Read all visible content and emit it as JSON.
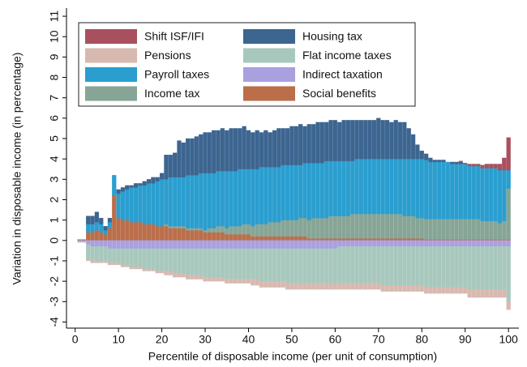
{
  "chart_data": {
    "type": "stacked-bar",
    "x_label": "Percentile of disposable income (per unit of consumption)",
    "y_label": "Variation in disposable income (in percentage)",
    "x": [
      1,
      2,
      3,
      4,
      5,
      6,
      7,
      8,
      9,
      10,
      11,
      12,
      13,
      14,
      15,
      16,
      17,
      18,
      19,
      20,
      21,
      22,
      23,
      24,
      25,
      26,
      27,
      28,
      29,
      30,
      31,
      32,
      33,
      34,
      35,
      36,
      37,
      38,
      39,
      40,
      41,
      42,
      43,
      44,
      45,
      46,
      47,
      48,
      49,
      50,
      51,
      52,
      53,
      54,
      55,
      56,
      57,
      58,
      59,
      60,
      61,
      62,
      63,
      64,
      65,
      66,
      67,
      68,
      69,
      70,
      71,
      72,
      73,
      74,
      75,
      76,
      77,
      78,
      79,
      80,
      81,
      82,
      83,
      84,
      85,
      86,
      87,
      88,
      89,
      90,
      91,
      92,
      93,
      94,
      95,
      96,
      97,
      98,
      99,
      100
    ],
    "xlim": [
      -2,
      102.4
    ],
    "xticks": [
      0,
      10,
      20,
      30,
      40,
      50,
      60,
      70,
      80,
      90,
      100
    ],
    "ylim": [
      -4.3,
      11.4
    ],
    "yticks": [
      -4,
      -3,
      -2,
      -1,
      0,
      1,
      2,
      3,
      4,
      5,
      6,
      7,
      8,
      9,
      10,
      11
    ],
    "series": [
      {
        "name": "Social benefits",
        "color": "#bb6e4a",
        "values": [
          0.05,
          0.05,
          0.4,
          0.4,
          0.5,
          0.4,
          0.3,
          0.6,
          2.2,
          1.1,
          1.0,
          1.0,
          0.9,
          0.9,
          0.9,
          0.8,
          0.8,
          0.8,
          0.7,
          0.7,
          0.7,
          0.6,
          0.6,
          0.6,
          0.6,
          0.5,
          0.5,
          0.5,
          0.5,
          0.4,
          0.4,
          0.4,
          0.4,
          0.4,
          0.3,
          0.3,
          0.3,
          0.3,
          0.3,
          0.3,
          0.2,
          0.2,
          0.2,
          0.2,
          0.2,
          0.2,
          0.2,
          0.2,
          0.2,
          0.2,
          0.2,
          0.2,
          0.2,
          0.1,
          0.1,
          0.1,
          0.1,
          0.1,
          0.1,
          0.1,
          0.1,
          0.1,
          0.1,
          0.1,
          0.1,
          0.1,
          0.1,
          0.1,
          0.1,
          0.1,
          0.1,
          0.1,
          0.1,
          0.1,
          0.1,
          0.1,
          0.1,
          0.1,
          0.1,
          0.1,
          0.05,
          0.05,
          0.05,
          0.05,
          0.05,
          0.05,
          0.05,
          0.05,
          0.05,
          0.05,
          0.05,
          0.05,
          0.05,
          0.05,
          0.05,
          0.05,
          0.05,
          0.05,
          0.05,
          0.05
        ]
      },
      {
        "name": "Income tax",
        "color": "#87a596",
        "values": [
          0,
          0,
          0,
          0,
          0,
          0,
          0,
          0,
          0,
          0,
          0,
          0,
          0,
          0,
          0,
          0,
          0,
          0,
          0,
          0,
          0.1,
          0.1,
          0.1,
          0.1,
          0.1,
          0.1,
          0.1,
          0.1,
          0.1,
          0.1,
          0.2,
          0.2,
          0.3,
          0.3,
          0.3,
          0.4,
          0.4,
          0.4,
          0.5,
          0.5,
          0.5,
          0.6,
          0.6,
          0.6,
          0.7,
          0.7,
          0.7,
          0.8,
          0.8,
          0.8,
          0.8,
          0.9,
          0.9,
          0.9,
          1.0,
          1.0,
          1.0,
          1.0,
          1.1,
          1.1,
          1.1,
          1.1,
          1.1,
          1.2,
          1.2,
          1.2,
          1.2,
          1.2,
          1.2,
          1.2,
          1.2,
          1.2,
          1.2,
          1.2,
          1.2,
          1.1,
          1.1,
          1.1,
          1.0,
          1.0,
          1.0,
          1.0,
          1.0,
          1.0,
          1.0,
          1.0,
          1.0,
          1.0,
          1.0,
          1.0,
          1.0,
          1.0,
          1.0,
          0.9,
          0.9,
          0.9,
          0.9,
          0.8,
          0.9,
          2.5
        ]
      },
      {
        "name": "Payroll taxes",
        "color": "#2a9ecf",
        "values": [
          0,
          0,
          0.4,
          0.4,
          0.4,
          0.4,
          0.2,
          0.3,
          1.0,
          1.2,
          1.4,
          1.5,
          1.7,
          1.7,
          1.8,
          1.9,
          2.0,
          2.0,
          2.2,
          2.3,
          2.2,
          2.4,
          2.4,
          2.4,
          2.4,
          2.6,
          2.6,
          2.6,
          2.7,
          2.8,
          2.7,
          2.7,
          2.7,
          2.7,
          2.8,
          2.7,
          2.7,
          2.8,
          2.7,
          2.7,
          2.8,
          2.7,
          2.8,
          2.8,
          2.7,
          2.7,
          2.7,
          2.7,
          2.7,
          2.7,
          2.7,
          2.6,
          2.7,
          2.8,
          2.7,
          2.7,
          2.7,
          2.8,
          2.7,
          2.7,
          2.7,
          2.7,
          2.7,
          2.6,
          2.7,
          2.7,
          2.7,
          2.7,
          2.7,
          2.7,
          2.7,
          2.7,
          2.7,
          2.7,
          2.7,
          2.8,
          2.8,
          2.8,
          2.9,
          2.9,
          2.9,
          2.8,
          2.8,
          2.8,
          2.8,
          2.8,
          2.7,
          2.7,
          2.7,
          2.7,
          2.6,
          2.6,
          2.6,
          2.6,
          2.6,
          2.6,
          2.6,
          2.6,
          2.5,
          0.9
        ]
      },
      {
        "name": "Housing tax",
        "color": "#3c6590",
        "values": [
          0,
          0,
          0.4,
          0.4,
          0.5,
          0.3,
          0.2,
          0.2,
          0,
          0.2,
          0.2,
          0.2,
          0.1,
          0.2,
          0.1,
          0.2,
          0.2,
          0.3,
          0.2,
          0.3,
          1.2,
          1.1,
          1.2,
          1.8,
          1.7,
          1.8,
          1.8,
          1.9,
          1.9,
          2.0,
          2.0,
          2.1,
          2.0,
          2.1,
          2.0,
          2.1,
          2.1,
          2.0,
          2.1,
          1.9,
          1.8,
          1.9,
          1.7,
          1.8,
          1.7,
          1.8,
          1.9,
          1.8,
          1.8,
          1.9,
          1.9,
          2.0,
          1.8,
          1.9,
          1.9,
          2.0,
          2.0,
          1.9,
          2.0,
          2.0,
          1.9,
          2.0,
          2.0,
          2.0,
          1.9,
          1.9,
          1.9,
          1.9,
          1.9,
          2.0,
          1.9,
          1.9,
          1.8,
          1.9,
          1.8,
          1.8,
          1.5,
          1.2,
          0.7,
          0.4,
          0.3,
          0.2,
          0.1,
          0.1,
          0.1,
          0,
          0.1,
          0.1,
          0.1,
          0,
          0,
          0,
          0,
          0,
          0,
          0,
          0,
          0,
          0,
          0
        ]
      },
      {
        "name": "Shift ISF/IFI",
        "color": "#a8505e",
        "values": [
          0,
          0,
          0,
          0,
          0,
          0,
          0,
          0,
          0,
          0,
          0,
          0,
          0,
          0,
          0,
          0,
          0,
          0,
          0,
          0,
          0,
          0,
          0,
          0,
          0,
          0,
          0,
          0,
          0,
          0,
          0,
          0,
          0,
          0,
          0,
          0,
          0,
          0,
          0,
          0,
          0,
          0,
          0,
          0,
          0,
          0,
          0,
          0,
          0,
          0,
          0,
          0,
          0,
          0,
          0,
          0,
          0,
          0,
          0,
          0,
          0,
          0,
          0,
          0,
          0,
          0,
          0,
          0,
          0,
          0,
          0,
          0,
          0,
          0,
          0,
          0,
          0,
          0,
          0,
          0,
          0,
          0,
          0,
          0,
          0,
          0,
          0,
          0,
          0.05,
          0.05,
          0.1,
          0.1,
          0.1,
          0.15,
          0.2,
          0.2,
          0.2,
          0.3,
          0.6,
          1.6
        ]
      },
      {
        "name": "Indirect taxation",
        "color": "#a9a0e0",
        "values": [
          -0.05,
          -0.05,
          -0.2,
          -0.3,
          -0.3,
          -0.3,
          -0.3,
          -0.4,
          -0.4,
          -0.4,
          -0.4,
          -0.4,
          -0.4,
          -0.4,
          -0.4,
          -0.4,
          -0.4,
          -0.4,
          -0.4,
          -0.4,
          -0.4,
          -0.4,
          -0.4,
          -0.4,
          -0.4,
          -0.4,
          -0.4,
          -0.4,
          -0.4,
          -0.4,
          -0.4,
          -0.4,
          -0.4,
          -0.4,
          -0.4,
          -0.4,
          -0.4,
          -0.4,
          -0.4,
          -0.4,
          -0.4,
          -0.4,
          -0.4,
          -0.4,
          -0.4,
          -0.4,
          -0.4,
          -0.4,
          -0.4,
          -0.4,
          -0.4,
          -0.4,
          -0.4,
          -0.4,
          -0.4,
          -0.4,
          -0.4,
          -0.4,
          -0.4,
          -0.4,
          -0.3,
          -0.3,
          -0.3,
          -0.3,
          -0.3,
          -0.3,
          -0.3,
          -0.3,
          -0.3,
          -0.3,
          -0.3,
          -0.3,
          -0.3,
          -0.3,
          -0.3,
          -0.3,
          -0.3,
          -0.3,
          -0.3,
          -0.3,
          -0.3,
          -0.3,
          -0.3,
          -0.3,
          -0.3,
          -0.3,
          -0.3,
          -0.3,
          -0.3,
          -0.3,
          -0.3,
          -0.3,
          -0.3,
          -0.3,
          -0.3,
          -0.3,
          -0.3,
          -0.3,
          -0.3,
          -0.3
        ]
      },
      {
        "name": "Flat income taxes",
        "color": "#a8c8bd",
        "values": [
          -0.05,
          -0.05,
          -0.7,
          -0.7,
          -0.7,
          -0.7,
          -0.7,
          -0.7,
          -0.7,
          -0.7,
          -0.8,
          -0.8,
          -0.9,
          -0.9,
          -0.9,
          -1.0,
          -1.0,
          -1.0,
          -1.1,
          -1.1,
          -1.1,
          -1.1,
          -1.2,
          -1.2,
          -1.2,
          -1.3,
          -1.3,
          -1.3,
          -1.3,
          -1.4,
          -1.4,
          -1.4,
          -1.4,
          -1.4,
          -1.5,
          -1.5,
          -1.5,
          -1.5,
          -1.5,
          -1.5,
          -1.5,
          -1.5,
          -1.6,
          -1.6,
          -1.6,
          -1.6,
          -1.6,
          -1.6,
          -1.7,
          -1.7,
          -1.7,
          -1.7,
          -1.7,
          -1.7,
          -1.7,
          -1.7,
          -1.7,
          -1.7,
          -1.7,
          -1.7,
          -1.8,
          -1.8,
          -1.8,
          -1.8,
          -1.8,
          -1.8,
          -1.8,
          -1.8,
          -1.8,
          -1.8,
          -1.9,
          -1.9,
          -1.9,
          -1.9,
          -1.9,
          -1.9,
          -1.9,
          -1.9,
          -1.9,
          -1.9,
          -2.0,
          -2.0,
          -2.0,
          -2.0,
          -2.0,
          -2.0,
          -2.0,
          -2.0,
          -2.0,
          -2.0,
          -2.1,
          -2.1,
          -2.1,
          -2.1,
          -2.1,
          -2.1,
          -2.1,
          -2.1,
          -2.1,
          -2.7
        ]
      },
      {
        "name": "Pensions",
        "color": "#d7b9b0",
        "values": [
          0,
          0,
          -0.1,
          -0.1,
          -0.1,
          -0.1,
          -0.1,
          -0.1,
          -0.1,
          -0.1,
          -0.1,
          -0.1,
          -0.1,
          -0.1,
          -0.1,
          -0.1,
          -0.1,
          -0.1,
          -0.1,
          -0.1,
          -0.2,
          -0.2,
          -0.2,
          -0.2,
          -0.2,
          -0.2,
          -0.2,
          -0.2,
          -0.2,
          -0.2,
          -0.2,
          -0.2,
          -0.2,
          -0.2,
          -0.2,
          -0.2,
          -0.2,
          -0.2,
          -0.2,
          -0.2,
          -0.3,
          -0.3,
          -0.3,
          -0.3,
          -0.3,
          -0.3,
          -0.3,
          -0.3,
          -0.3,
          -0.3,
          -0.3,
          -0.3,
          -0.3,
          -0.3,
          -0.3,
          -0.3,
          -0.3,
          -0.3,
          -0.3,
          -0.3,
          -0.3,
          -0.3,
          -0.3,
          -0.3,
          -0.3,
          -0.3,
          -0.3,
          -0.3,
          -0.3,
          -0.3,
          -0.3,
          -0.3,
          -0.3,
          -0.3,
          -0.3,
          -0.3,
          -0.3,
          -0.3,
          -0.3,
          -0.3,
          -0.3,
          -0.3,
          -0.3,
          -0.3,
          -0.3,
          -0.3,
          -0.3,
          -0.3,
          -0.3,
          -0.3,
          -0.4,
          -0.4,
          -0.4,
          -0.4,
          -0.4,
          -0.4,
          -0.4,
          -0.4,
          -0.4,
          -0.4
        ]
      }
    ]
  }
}
